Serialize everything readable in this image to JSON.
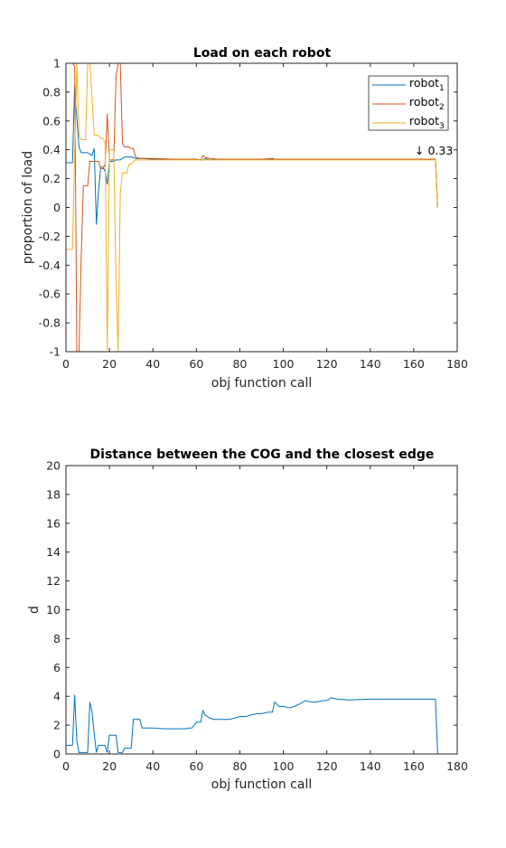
{
  "chart_data": [
    {
      "type": "line",
      "title": "Load on each robot",
      "xlabel": "obj function call",
      "ylabel": "proportion of load",
      "xlim": [
        0,
        180
      ],
      "ylim": [
        -1,
        1
      ],
      "xticks": [
        0,
        20,
        40,
        60,
        80,
        100,
        120,
        140,
        160,
        180
      ],
      "yticks": [
        -1,
        -0.8,
        -0.6,
        -0.4,
        -0.2,
        0,
        0.2,
        0.4,
        0.6,
        0.8,
        1
      ],
      "ytick_labels": [
        "-1",
        "-0.8",
        "-0.6",
        "-0.4",
        "-0.2",
        "0",
        "0.2",
        "0.4",
        "0.6",
        "0.8",
        "1"
      ],
      "grid": false,
      "legend": "top-right",
      "annotation": {
        "text": "↓ 0.33",
        "x": 162,
        "y": 0.33
      },
      "series": [
        {
          "name": "robot",
          "subscript": "1",
          "color": "#0072BD",
          "x": [
            0,
            3,
            4,
            5,
            6,
            7,
            8,
            9,
            10,
            11,
            12,
            13,
            14,
            15,
            16,
            17,
            18,
            19,
            20,
            21,
            22,
            23,
            24,
            25,
            26,
            27,
            28,
            30,
            32,
            35,
            40,
            50,
            60,
            62,
            63,
            64,
            66,
            70,
            80,
            90,
            100,
            110,
            120,
            140,
            160,
            170,
            171
          ],
          "y": [
            0.31,
            0.31,
            0.85,
            0.62,
            0.42,
            0.38,
            0.38,
            0.38,
            0.38,
            0.37,
            0.36,
            0.41,
            -0.12,
            0.12,
            0.28,
            0.28,
            0.25,
            0.16,
            0.32,
            0.32,
            0.32,
            0.33,
            0.33,
            0.33,
            0.34,
            0.35,
            0.35,
            0.35,
            0.34,
            0.34,
            0.335,
            0.335,
            0.335,
            0.33,
            0.33,
            0.34,
            0.33,
            0.335,
            0.335,
            0.335,
            0.335,
            0.335,
            0.335,
            0.335,
            0.335,
            0.335,
            0.0
          ]
        },
        {
          "name": "robot",
          "subscript": "2",
          "color": "#D95319",
          "x": [
            0,
            3,
            4,
            5,
            6,
            7,
            8,
            9,
            10,
            11,
            12,
            13,
            14,
            15,
            16,
            17,
            18,
            19,
            20,
            21,
            22,
            23,
            24,
            25,
            26,
            27,
            28,
            29,
            30,
            31,
            32,
            34,
            36,
            40,
            50,
            60,
            62,
            63,
            64,
            66,
            70,
            80,
            90,
            95,
            96,
            100,
            110,
            120,
            140,
            160,
            170,
            171
          ],
          "y": [
            1.0,
            1.0,
            0.98,
            -1.0,
            -1.0,
            -0.35,
            0.15,
            0.15,
            0.15,
            0.32,
            0.32,
            0.32,
            0.32,
            0.32,
            0.27,
            0.27,
            0.3,
            0.65,
            0.33,
            0.33,
            0.33,
            0.9,
            1.0,
            1.0,
            0.44,
            0.42,
            0.42,
            0.42,
            0.41,
            0.41,
            0.35,
            0.34,
            0.34,
            0.34,
            0.335,
            0.335,
            0.33,
            0.36,
            0.35,
            0.34,
            0.335,
            0.335,
            0.335,
            0.34,
            0.335,
            0.335,
            0.335,
            0.335,
            0.335,
            0.335,
            0.335,
            0.0
          ]
        },
        {
          "name": "robot",
          "subscript": "3",
          "color": "#EDB120",
          "x": [
            0,
            3,
            4,
            5,
            6,
            7,
            8,
            9,
            10,
            11,
            12,
            13,
            14,
            15,
            16,
            17,
            18,
            19,
            20,
            21,
            22,
            23,
            24,
            25,
            26,
            27,
            28,
            29,
            30,
            31,
            32,
            34,
            36,
            40,
            50,
            60,
            62,
            63,
            64,
            66,
            70,
            80,
            90,
            100,
            110,
            120,
            140,
            160,
            170,
            171
          ],
          "y": [
            -0.29,
            -0.29,
            0.4,
            1.0,
            0.5,
            0.47,
            0.47,
            0.47,
            1.0,
            1.0,
            0.76,
            0.5,
            0.5,
            0.5,
            0.48,
            0.48,
            0.45,
            -0.99,
            0.4,
            0.4,
            0.4,
            -0.5,
            -1.0,
            0.1,
            0.24,
            0.24,
            0.24,
            0.3,
            0.3,
            0.32,
            0.33,
            0.33,
            0.33,
            0.33,
            0.33,
            0.33,
            0.33,
            0.33,
            0.33,
            0.33,
            0.33,
            0.33,
            0.33,
            0.33,
            0.33,
            0.33,
            0.33,
            0.33,
            0.33,
            0.0
          ]
        }
      ]
    },
    {
      "type": "line",
      "title": "Distance between the COG and the closest edge",
      "xlabel": "obj function call",
      "ylabel": "d",
      "xlim": [
        0,
        180
      ],
      "ylim": [
        0,
        20
      ],
      "xticks": [
        0,
        20,
        40,
        60,
        80,
        100,
        120,
        140,
        160,
        180
      ],
      "yticks": [
        0,
        2,
        4,
        6,
        8,
        10,
        12,
        14,
        16,
        18,
        20
      ],
      "ytick_labels": [
        "0",
        "2",
        "4",
        "6",
        "8",
        "10",
        "12",
        "14",
        "16",
        "18",
        "20"
      ],
      "grid": false,
      "series": [
        {
          "color": "#0072BD",
          "x": [
            0,
            3,
            4,
            5,
            6,
            7,
            8,
            9,
            10,
            11,
            12,
            13,
            14,
            15,
            16,
            17,
            18,
            19,
            20,
            21,
            22,
            23,
            24,
            25,
            26,
            27,
            28,
            29,
            30,
            31,
            32,
            33,
            34,
            35,
            36,
            40,
            45,
            50,
            55,
            57,
            58,
            60,
            61,
            62,
            63,
            64,
            66,
            68,
            70,
            75,
            78,
            80,
            83,
            85,
            88,
            90,
            93,
            95,
            96,
            98,
            100,
            103,
            105,
            108,
            110,
            113,
            115,
            118,
            120,
            122,
            125,
            130,
            140,
            150,
            160,
            170,
            171
          ],
          "y": [
            0.6,
            0.6,
            4.1,
            0.9,
            0.1,
            0.1,
            0.1,
            0.1,
            0.1,
            3.6,
            2.9,
            1.4,
            0.1,
            0.6,
            0.6,
            0.6,
            0.6,
            0.1,
            1.3,
            1.3,
            1.3,
            1.3,
            0.1,
            0.1,
            0.1,
            0.4,
            0.4,
            0.4,
            0.4,
            2.4,
            2.4,
            2.4,
            2.4,
            1.8,
            1.8,
            1.8,
            1.75,
            1.75,
            1.75,
            1.8,
            1.8,
            2.2,
            2.2,
            2.2,
            3.0,
            2.7,
            2.5,
            2.4,
            2.4,
            2.4,
            2.5,
            2.6,
            2.6,
            2.7,
            2.8,
            2.8,
            2.9,
            2.9,
            3.6,
            3.3,
            3.3,
            3.2,
            3.3,
            3.5,
            3.7,
            3.6,
            3.6,
            3.7,
            3.7,
            3.9,
            3.8,
            3.75,
            3.8,
            3.8,
            3.8,
            3.8,
            0.0
          ]
        }
      ]
    }
  ]
}
